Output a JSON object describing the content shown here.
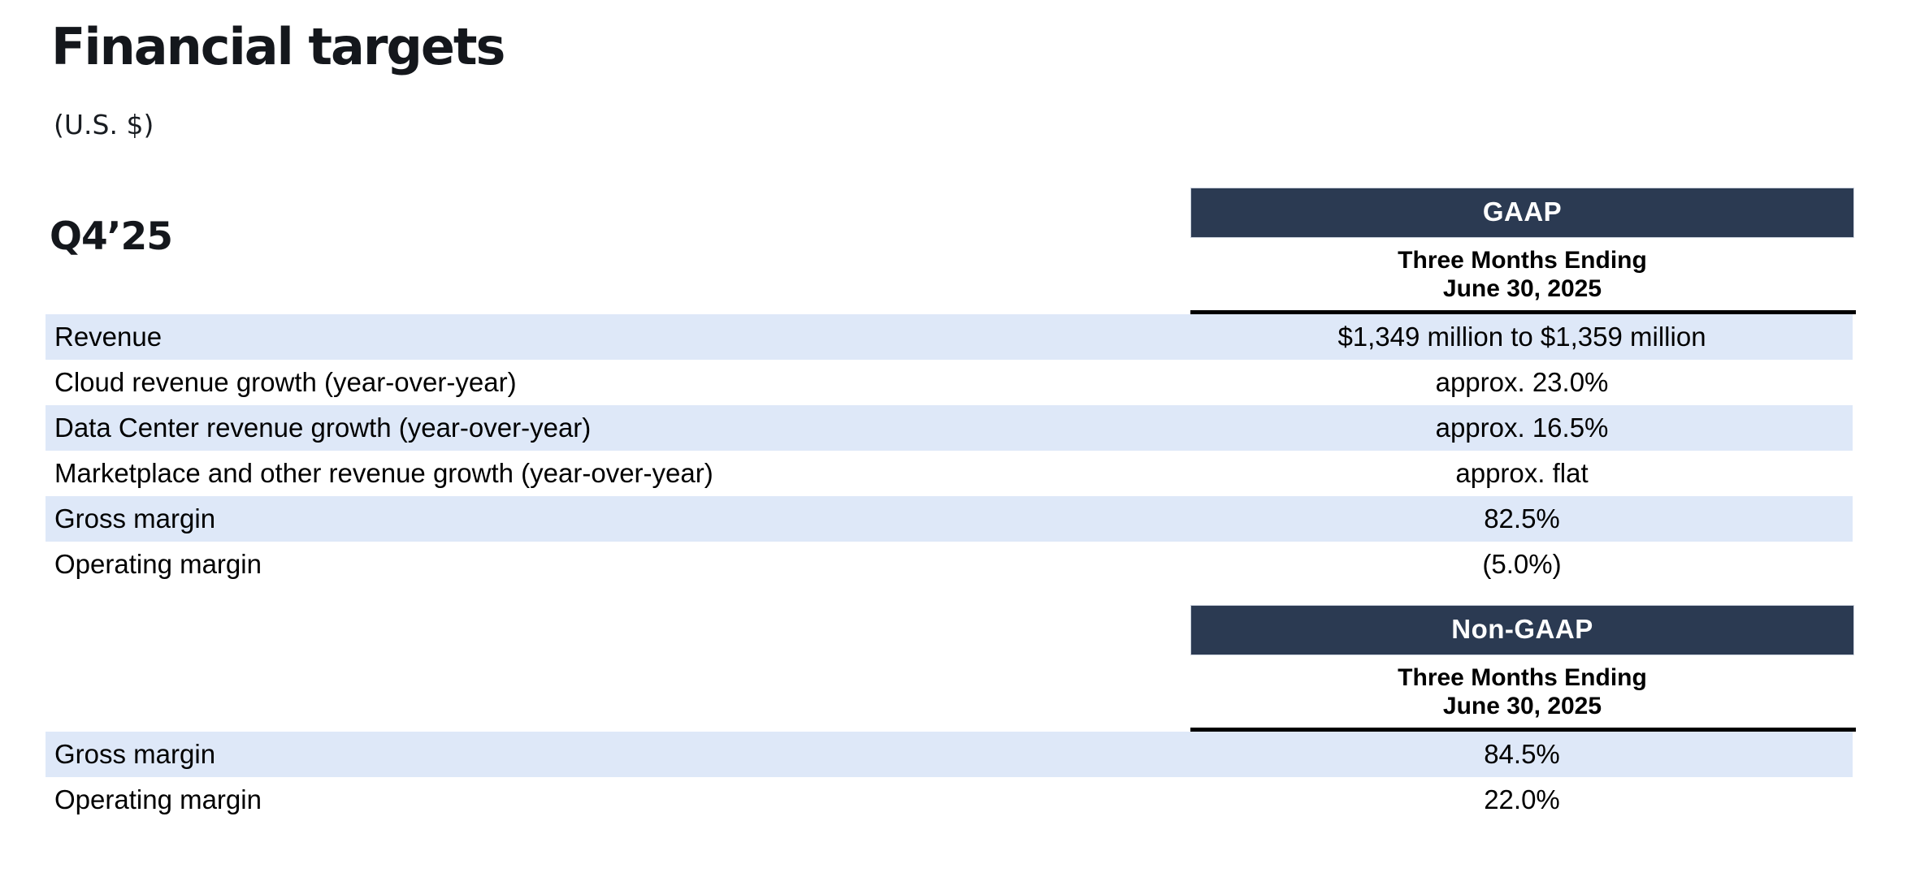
{
  "page": {
    "title": "Financial targets",
    "subtitle": "(U.S. $)",
    "period_label": "Q4’25"
  },
  "colors": {
    "header_navy": "#2B3A52",
    "row_highlight_blue": "#DEE8F8",
    "header_rule_black": "#000000",
    "header_text_white": "#FFFFFF"
  },
  "sections": [
    {
      "name": "GAAP",
      "header_label": "GAAP",
      "period_header": {
        "line1": "Three Months Ending",
        "line2": "June 30, 2025"
      },
      "rows": [
        {
          "label": "Revenue",
          "value": "$1,349 million to $1,359 million"
        },
        {
          "label": "Cloud revenue growth (year-over-year)",
          "value": "approx. 23.0%"
        },
        {
          "label": "Data Center revenue growth (year-over-year)",
          "value": "approx. 16.5%"
        },
        {
          "label": "Marketplace and other revenue growth (year-over-year)",
          "value": "approx. flat"
        },
        {
          "label": "Gross margin",
          "value": "82.5%"
        },
        {
          "label": "Operating margin",
          "value": "(5.0%)"
        }
      ]
    },
    {
      "name": "Non-GAAP",
      "header_label": "Non-GAAP",
      "period_header": {
        "line1": "Three Months Ending",
        "line2": "June 30, 2025"
      },
      "rows": [
        {
          "label": "Gross margin",
          "value": "84.5%"
        },
        {
          "label": "Operating margin",
          "value": "22.0%"
        }
      ]
    }
  ]
}
